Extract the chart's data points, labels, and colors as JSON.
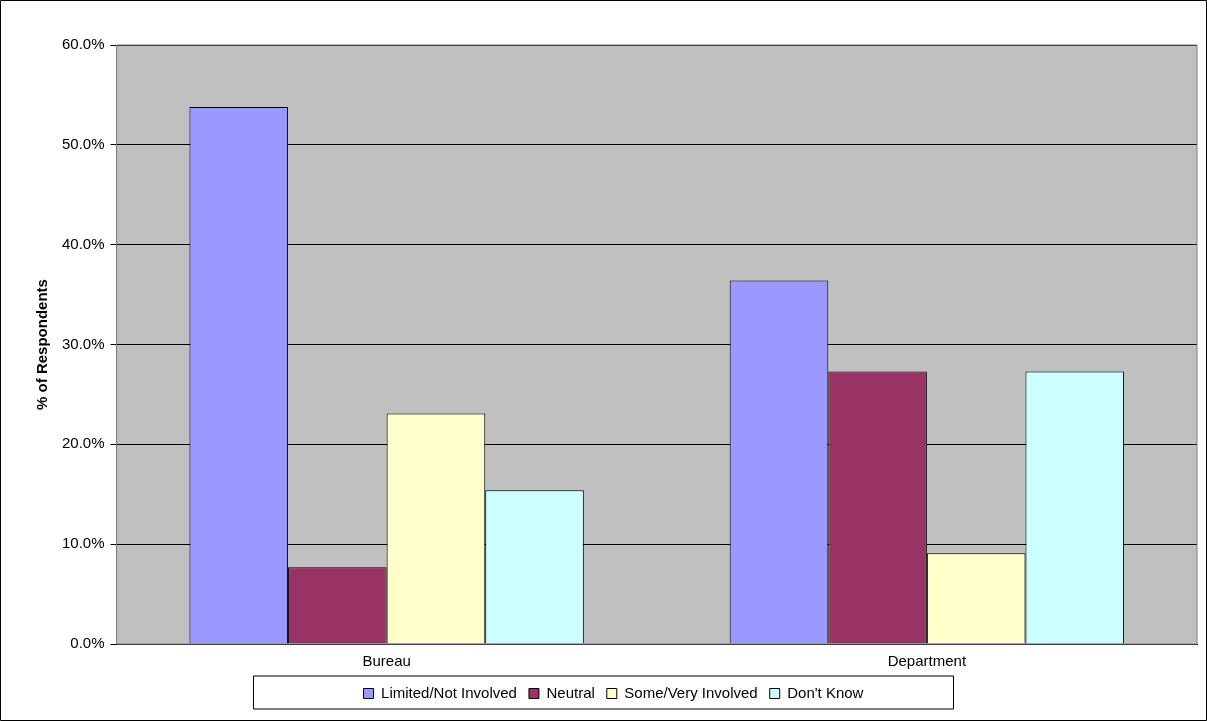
{
  "chart_data": {
    "type": "bar",
    "ylabel": "% of Respondents",
    "categories": [
      "Bureau",
      "Department"
    ],
    "series": [
      {
        "name": "Limited/Not Involved",
        "color": "#9999ff",
        "values": [
          53.8,
          36.4
        ]
      },
      {
        "name": "Neutral",
        "color": "#993366",
        "values": [
          7.7,
          27.3
        ]
      },
      {
        "name": "Some/Very Involved",
        "color": "#ffffcc",
        "values": [
          23.1,
          9.1
        ]
      },
      {
        "name": "Don't Know",
        "color": "#ccffff",
        "values": [
          15.4,
          27.3
        ]
      }
    ],
    "ylim": [
      0,
      60
    ],
    "yticks": [
      {
        "value": 0,
        "label": "0.0%"
      },
      {
        "value": 10,
        "label": "10.0%"
      },
      {
        "value": 20,
        "label": "20.0%"
      },
      {
        "value": 30,
        "label": "30.0%"
      },
      {
        "value": 40,
        "label": "40.0%"
      },
      {
        "value": 50,
        "label": "50.0%"
      },
      {
        "value": 60,
        "label": "60.0%"
      }
    ],
    "grid": "y",
    "legend": "bottom"
  }
}
